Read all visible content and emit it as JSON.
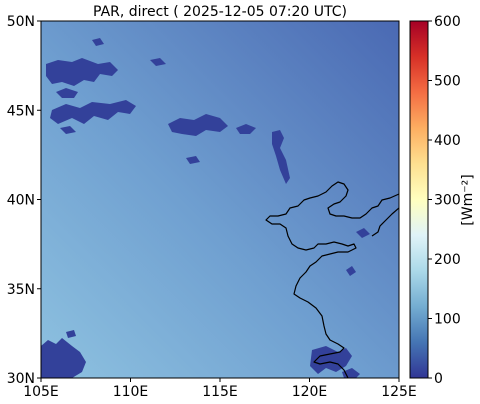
{
  "chart_data": {
    "type": "heatmap",
    "title": "PAR, direct ( 2025-12-05 07:20 UTC)",
    "x_ticks": [
      "105E",
      "110E",
      "115E",
      "120E",
      "125E"
    ],
    "y_ticks": [
      "30N",
      "35N",
      "40N",
      "45N",
      "50N"
    ],
    "xlim": [
      105,
      125
    ],
    "ylim": [
      30,
      50
    ],
    "colorbar": {
      "label": "[Wm⁻²]",
      "ticks": [
        "0",
        "100",
        "200",
        "300",
        "400",
        "500",
        "600"
      ],
      "range": [
        0,
        600
      ],
      "colormap": "RdYlBu_r",
      "colors": [
        "#313695",
        "#4575b4",
        "#74add1",
        "#abd9e9",
        "#e0f3f8",
        "#ffffbf",
        "#fee090",
        "#fdae61",
        "#f46d43",
        "#d73027",
        "#a50026"
      ]
    },
    "field": {
      "min_value": 0,
      "max_value": 180,
      "gradient": "values increase from about 75 in the north-east to about 175 in the south-west; cloud patches near 0"
    },
    "colors": {
      "field_dark": "#4a69b3",
      "field_light": "#8ec2e0",
      "cloud": "#33419a",
      "coastline": "#000000"
    }
  }
}
